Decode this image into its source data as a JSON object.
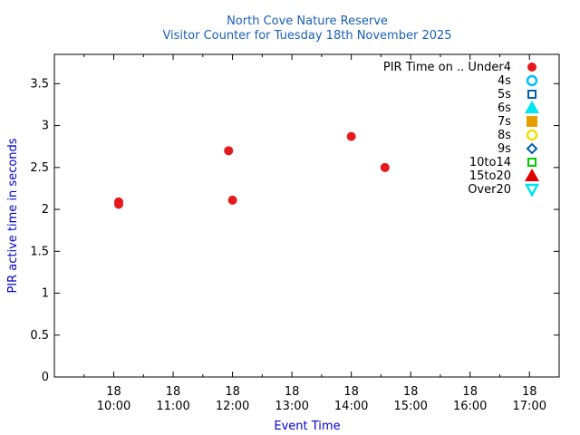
{
  "chart_data": {
    "type": "scatter",
    "title": "North Cove Nature Reserve",
    "subtitle": "Visitor Counter for Tuesday 18th November 2025",
    "xlabel": "Event Time",
    "ylabel": "PIR active time in seconds",
    "xlim": [
      "09:00",
      "17:30"
    ],
    "ylim": [
      0,
      3.85
    ],
    "x_ticks": [
      {
        "day": "18",
        "time": "10:00"
      },
      {
        "day": "18",
        "time": "11:00"
      },
      {
        "day": "18",
        "time": "12:00"
      },
      {
        "day": "18",
        "time": "13:00"
      },
      {
        "day": "18",
        "time": "14:00"
      },
      {
        "day": "18",
        "time": "15:00"
      },
      {
        "day": "18",
        "time": "16:00"
      },
      {
        "day": "18",
        "time": "17:00"
      }
    ],
    "y_ticks": [
      "0",
      "0.5",
      "1",
      "1.5",
      "2",
      "2.5",
      "3",
      "3.5"
    ],
    "legend_position": "top-right",
    "series": [
      {
        "name": "PIR Time on .. Under4",
        "marker": "filled-circle",
        "color": "#e41a1c",
        "points": [
          {
            "x": "10:05",
            "y": 2.09
          },
          {
            "x": "10:05",
            "y": 2.06
          },
          {
            "x": "11:56",
            "y": 2.7
          },
          {
            "x": "12:00",
            "y": 2.11
          },
          {
            "x": "14:00",
            "y": 2.87
          },
          {
            "x": "14:34",
            "y": 2.5
          }
        ]
      },
      {
        "name": "4s",
        "marker": "open-circle",
        "color": "#00bfff",
        "points": []
      },
      {
        "name": "5s",
        "marker": "open-square",
        "color": "#0060ad",
        "points": []
      },
      {
        "name": "6s",
        "marker": "filled-triangle",
        "color": "#00e5ee",
        "points": []
      },
      {
        "name": "7s",
        "marker": "filled-square",
        "color": "#e69f00",
        "points": []
      },
      {
        "name": "8s",
        "marker": "open-circle",
        "color": "#f0e000",
        "points": []
      },
      {
        "name": "9s",
        "marker": "open-diamond",
        "color": "#0060ad",
        "points": []
      },
      {
        "name": "10to14",
        "marker": "open-square",
        "color": "#00cc00",
        "points": []
      },
      {
        "name": "15to20",
        "marker": "filled-triangle",
        "color": "#e00000",
        "points": []
      },
      {
        "name": "Over20",
        "marker": "open-triangle-down",
        "color": "#00e5ee",
        "points": []
      }
    ]
  }
}
